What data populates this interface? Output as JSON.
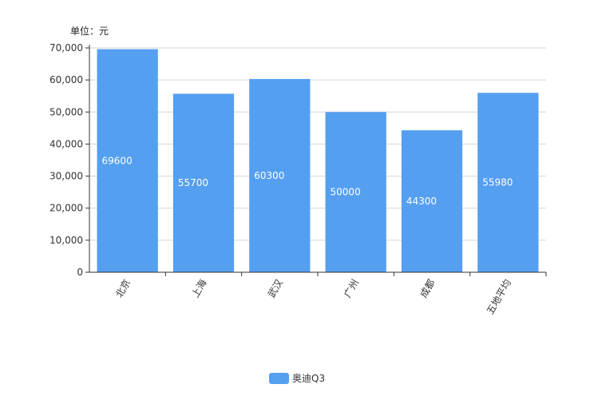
{
  "chart_data": {
    "type": "bar",
    "unit_label": "单位：元",
    "categories": [
      "北京",
      "上海",
      "武汉",
      "广州",
      "成都",
      "五地平均"
    ],
    "series": [
      {
        "name": "奥迪Q3",
        "values": [
          69600,
          55700,
          60300,
          50000,
          44300,
          55980
        ],
        "color": "#559ff0"
      }
    ],
    "ylim": [
      0,
      70000
    ],
    "yticks": [
      0,
      10000,
      20000,
      30000,
      40000,
      50000,
      60000,
      70000
    ],
    "ytick_labels": [
      "0",
      "10,000",
      "20,000",
      "30,000",
      "40,000",
      "50,000",
      "60,000",
      "70,000"
    ],
    "grid": true,
    "legend_position": "bottom-center"
  }
}
